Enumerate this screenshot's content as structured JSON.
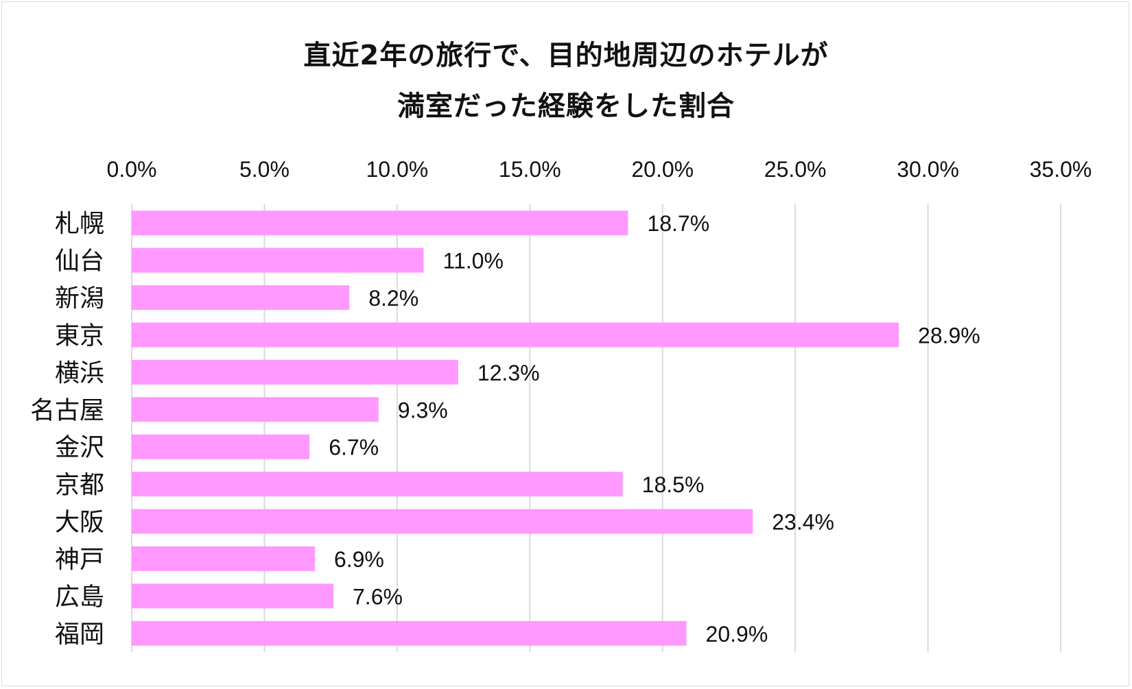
{
  "chart_data": {
    "type": "bar",
    "orientation": "horizontal",
    "title_lines": [
      "直近2年の旅行で、目的地周辺のホテルが",
      "満室だった経験をした割合"
    ],
    "categories": [
      "札幌",
      "仙台",
      "新潟",
      "東京",
      "横浜",
      "名古屋",
      "金沢",
      "京都",
      "大阪",
      "神戸",
      "広島",
      "福岡"
    ],
    "values": [
      18.7,
      11.0,
      8.2,
      28.9,
      12.3,
      9.3,
      6.7,
      18.5,
      23.4,
      6.9,
      7.6,
      20.9
    ],
    "data_labels": [
      "18.7%",
      "11.0%",
      "8.2%",
      "28.9%",
      "12.3%",
      "9.3%",
      "6.7%",
      "18.5%",
      "23.4%",
      "6.9%",
      "7.6%",
      "20.9%"
    ],
    "xlim": [
      0,
      35
    ],
    "x_ticks": [
      0,
      5,
      10,
      15,
      20,
      25,
      30,
      35
    ],
    "x_tick_labels": [
      "0.0%",
      "5.0%",
      "10.0%",
      "15.0%",
      "20.0%",
      "25.0%",
      "30.0%",
      "35.0%"
    ],
    "x_axis_position": "top",
    "grid": true,
    "bar_color": "#ff99ff",
    "grid_color": "#d9d9d9",
    "legend": "none"
  }
}
